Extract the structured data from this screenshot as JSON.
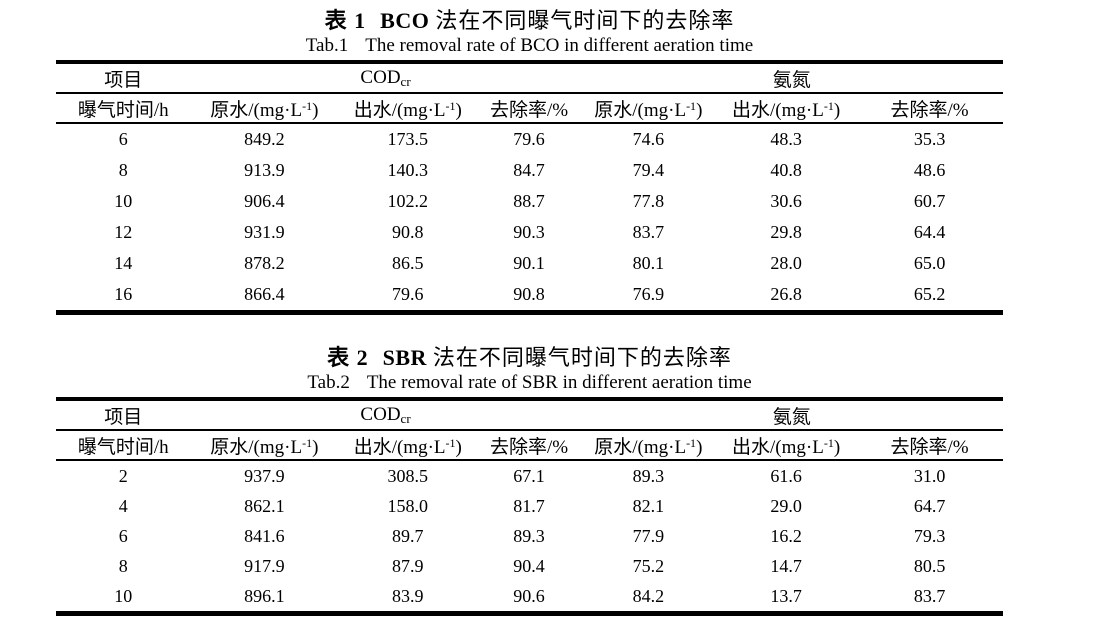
{
  "page": {
    "background": "#ffffff",
    "text_color": "#000000",
    "rule_color": "#000000"
  },
  "tables": [
    {
      "title_zh": {
        "label": "表 1",
        "method": "BCO",
        "rest": "法在不同曝气时间下的去除率"
      },
      "title_en": {
        "label": "Tab.1",
        "text": "The removal rate of BCO in different aeration time"
      },
      "header": {
        "item": "项目",
        "groups": [
          {
            "name": "COD",
            "sub": "cr"
          },
          {
            "name": "氨氮",
            "sub": ""
          }
        ],
        "columns": [
          {
            "parts": [
              {
                "t": "曝气时间/h"
              }
            ]
          },
          {
            "parts": [
              {
                "t": "原水/(mg·L"
              },
              {
                "t": "-1",
                "sup": true
              },
              {
                "t": ")"
              }
            ]
          },
          {
            "parts": [
              {
                "t": "出水/(mg·L"
              },
              {
                "t": "-1",
                "sup": true
              },
              {
                "t": ")"
              }
            ]
          },
          {
            "parts": [
              {
                "t": "去除率/%"
              }
            ]
          },
          {
            "parts": [
              {
                "t": "原水/(mg·L"
              },
              {
                "t": "-1",
                "sup": true
              },
              {
                "t": ")"
              }
            ]
          },
          {
            "parts": [
              {
                "t": "出水/(mg·L"
              },
              {
                "t": "-1",
                "sup": true
              },
              {
                "t": ")"
              }
            ]
          },
          {
            "parts": [
              {
                "t": "去除率/%"
              }
            ]
          }
        ]
      },
      "rows": [
        [
          "6",
          "849.2",
          "173.5",
          "79.6",
          "74.6",
          "48.3",
          "35.3"
        ],
        [
          "8",
          "913.9",
          "140.3",
          "84.7",
          "79.4",
          "40.8",
          "48.6"
        ],
        [
          "10",
          "906.4",
          "102.2",
          "88.7",
          "77.8",
          "30.6",
          "60.7"
        ],
        [
          "12",
          "931.9",
          "90.8",
          "90.3",
          "83.7",
          "29.8",
          "64.4"
        ],
        [
          "14",
          "878.2",
          "86.5",
          "90.1",
          "80.1",
          "28.0",
          "65.0"
        ],
        [
          "16",
          "866.4",
          "79.6",
          "90.8",
          "76.9",
          "26.8",
          "65.2"
        ]
      ]
    },
    {
      "title_zh": {
        "label": "表 2",
        "method": "SBR",
        "rest": "法在不同曝气时间下的去除率"
      },
      "title_en": {
        "label": "Tab.2",
        "text": "The removal rate of SBR in different aeration time"
      },
      "header": {
        "item": "项目",
        "groups": [
          {
            "name": "COD",
            "sub": "cr"
          },
          {
            "name": "氨氮",
            "sub": ""
          }
        ],
        "columns": [
          {
            "parts": [
              {
                "t": "曝气时间/h"
              }
            ]
          },
          {
            "parts": [
              {
                "t": "原水/(mg·L"
              },
              {
                "t": "-1",
                "sup": true
              },
              {
                "t": ")"
              }
            ]
          },
          {
            "parts": [
              {
                "t": "出水/(mg·L"
              },
              {
                "t": "-1",
                "sup": true
              },
              {
                "t": ")"
              }
            ]
          },
          {
            "parts": [
              {
                "t": "去除率/%"
              }
            ]
          },
          {
            "parts": [
              {
                "t": "原水/(mg·L"
              },
              {
                "t": "-1",
                "sup": true
              },
              {
                "t": ")"
              }
            ]
          },
          {
            "parts": [
              {
                "t": "出水/(mg·L"
              },
              {
                "t": "-1",
                "sup": true
              },
              {
                "t": ")"
              }
            ]
          },
          {
            "parts": [
              {
                "t": "去除率/%"
              }
            ]
          }
        ]
      },
      "rows": [
        [
          "2",
          "937.9",
          "308.5",
          "67.1",
          "89.3",
          "61.6",
          "31.0"
        ],
        [
          "4",
          "862.1",
          "158.0",
          "81.7",
          "82.1",
          "29.0",
          "64.7"
        ],
        [
          "6",
          "841.6",
          "89.7",
          "89.3",
          "77.9",
          "16.2",
          "79.3"
        ],
        [
          "8",
          "917.9",
          "87.9",
          "90.4",
          "75.2",
          "14.7",
          "80.5"
        ],
        [
          "10",
          "896.1",
          "83.9",
          "90.6",
          "84.2",
          "13.7",
          "83.7"
        ]
      ]
    }
  ]
}
